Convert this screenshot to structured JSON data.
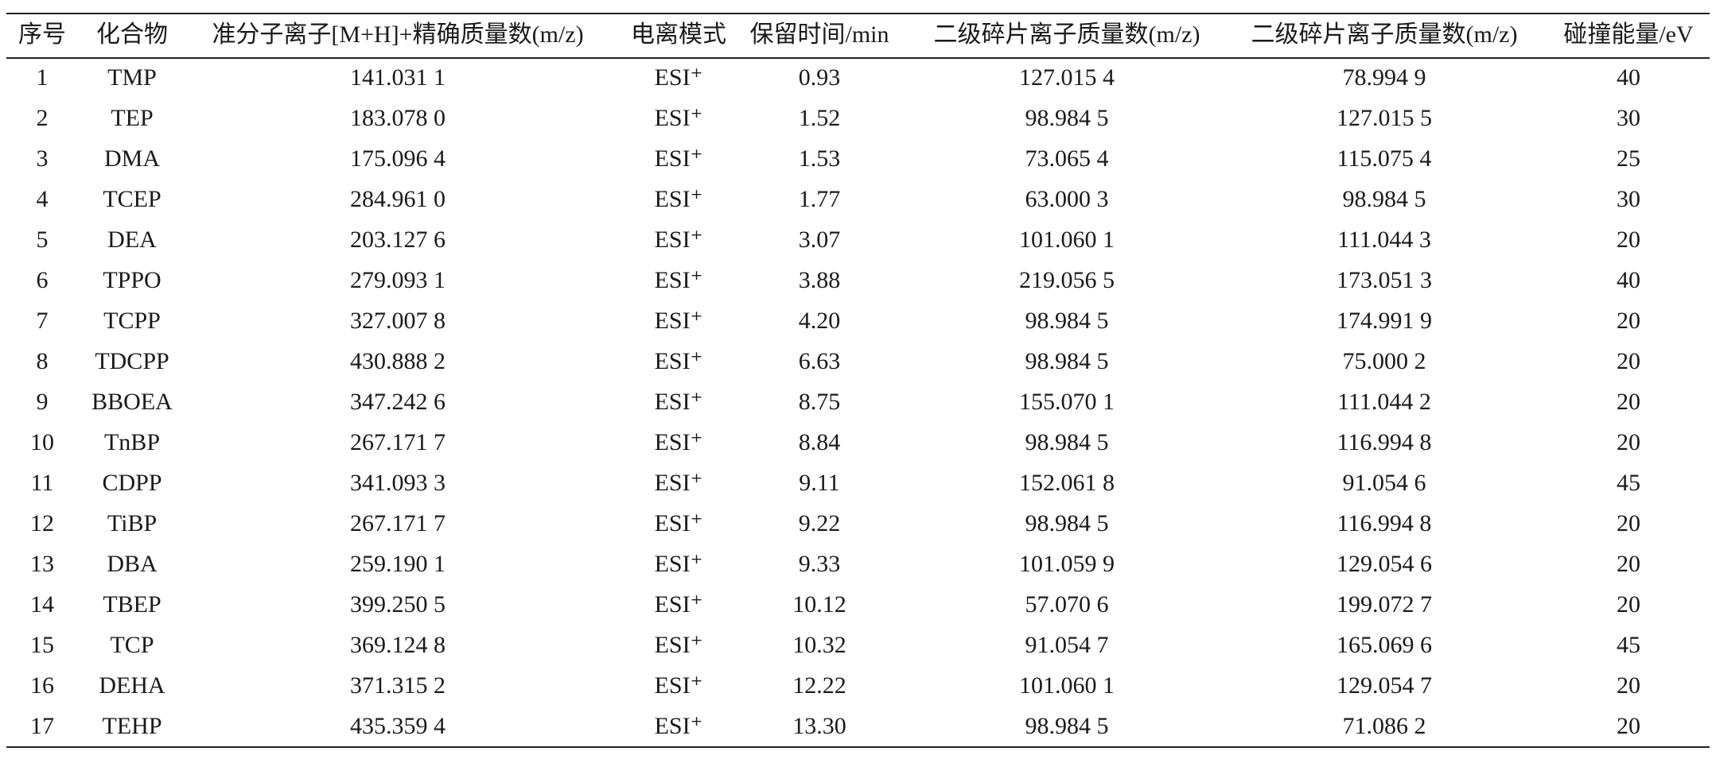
{
  "table": {
    "header": [
      "序号",
      "化合物",
      "准分子离子[M+H]+精确质量数(m/z)",
      "电离模式",
      "保留时间/min",
      "二级碎片离子质量数(m/z)",
      "二级碎片离子质量数(m/z)",
      "碰撞能量/eV"
    ],
    "rows": [
      [
        "1",
        "TMP",
        "141.031 1",
        "ESI⁺",
        "0.93",
        "127.015 4",
        "78.994 9",
        "40"
      ],
      [
        "2",
        "TEP",
        "183.078 0",
        "ESI⁺",
        "1.52",
        "98.984 5",
        "127.015 5",
        "30"
      ],
      [
        "3",
        "DMA",
        "175.096 4",
        "ESI⁺",
        "1.53",
        "73.065 4",
        "115.075 4",
        "25"
      ],
      [
        "4",
        "TCEP",
        "284.961 0",
        "ESI⁺",
        "1.77",
        "63.000 3",
        "98.984 5",
        "30"
      ],
      [
        "5",
        "DEA",
        "203.127 6",
        "ESI⁺",
        "3.07",
        "101.060 1",
        "111.044 3",
        "20"
      ],
      [
        "6",
        "TPPO",
        "279.093 1",
        "ESI⁺",
        "3.88",
        "219.056 5",
        "173.051 3",
        "40"
      ],
      [
        "7",
        "TCPP",
        "327.007 8",
        "ESI⁺",
        "4.20",
        "98.984 5",
        "174.991 9",
        "20"
      ],
      [
        "8",
        "TDCPP",
        "430.888 2",
        "ESI⁺",
        "6.63",
        "98.984 5",
        "75.000 2",
        "20"
      ],
      [
        "9",
        "BBOEA",
        "347.242 6",
        "ESI⁺",
        "8.75",
        "155.070 1",
        "111.044 2",
        "20"
      ],
      [
        "10",
        "TnBP",
        "267.171 7",
        "ESI⁺",
        "8.84",
        "98.984 5",
        "116.994 8",
        "20"
      ],
      [
        "11",
        "CDPP",
        "341.093 3",
        "ESI⁺",
        "9.11",
        "152.061 8",
        "91.054 6",
        "45"
      ],
      [
        "12",
        "TiBP",
        "267.171 7",
        "ESI⁺",
        "9.22",
        "98.984 5",
        "116.994 8",
        "20"
      ],
      [
        "13",
        "DBA",
        "259.190 1",
        "ESI⁺",
        "9.33",
        "101.059 9",
        "129.054 6",
        "20"
      ],
      [
        "14",
        "TBEP",
        "399.250 5",
        "ESI⁺",
        "10.12",
        "57.070 6",
        "199.072 7",
        "20"
      ],
      [
        "15",
        "TCP",
        "369.124 8",
        "ESI⁺",
        "10.32",
        "91.054 7",
        "165.069 6",
        "45"
      ],
      [
        "16",
        "DEHA",
        "371.315 2",
        "ESI⁺",
        "12.22",
        "101.060 1",
        "129.054 7",
        "20"
      ],
      [
        "17",
        "TEHP",
        "435.359 4",
        "ESI⁺",
        "13.30",
        "98.984 5",
        "71.086 2",
        "20"
      ]
    ]
  }
}
